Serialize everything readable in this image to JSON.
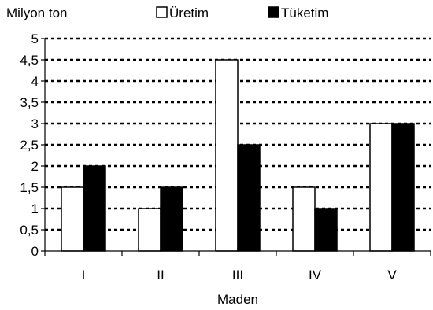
{
  "chart_data": {
    "type": "bar",
    "title": "",
    "ylabel": "Milyon ton",
    "xlabel": "Maden",
    "categories": [
      "I",
      "II",
      "III",
      "IV",
      "V"
    ],
    "series": [
      {
        "name": "Üretim",
        "values": [
          1.5,
          1,
          4.5,
          1.5,
          3
        ],
        "color": "#ffffff"
      },
      {
        "name": "Tüketim",
        "values": [
          2,
          1.5,
          2.5,
          1,
          3
        ],
        "color": "#000000"
      }
    ],
    "ylim": [
      0,
      5
    ],
    "yticks": [
      "0",
      "0,5",
      "1",
      "1,5",
      "2",
      "2,5",
      "3",
      "3,5",
      "4",
      "4,5",
      "5"
    ],
    "grid": true,
    "grid_style": "dotted",
    "legend_position": "top"
  }
}
